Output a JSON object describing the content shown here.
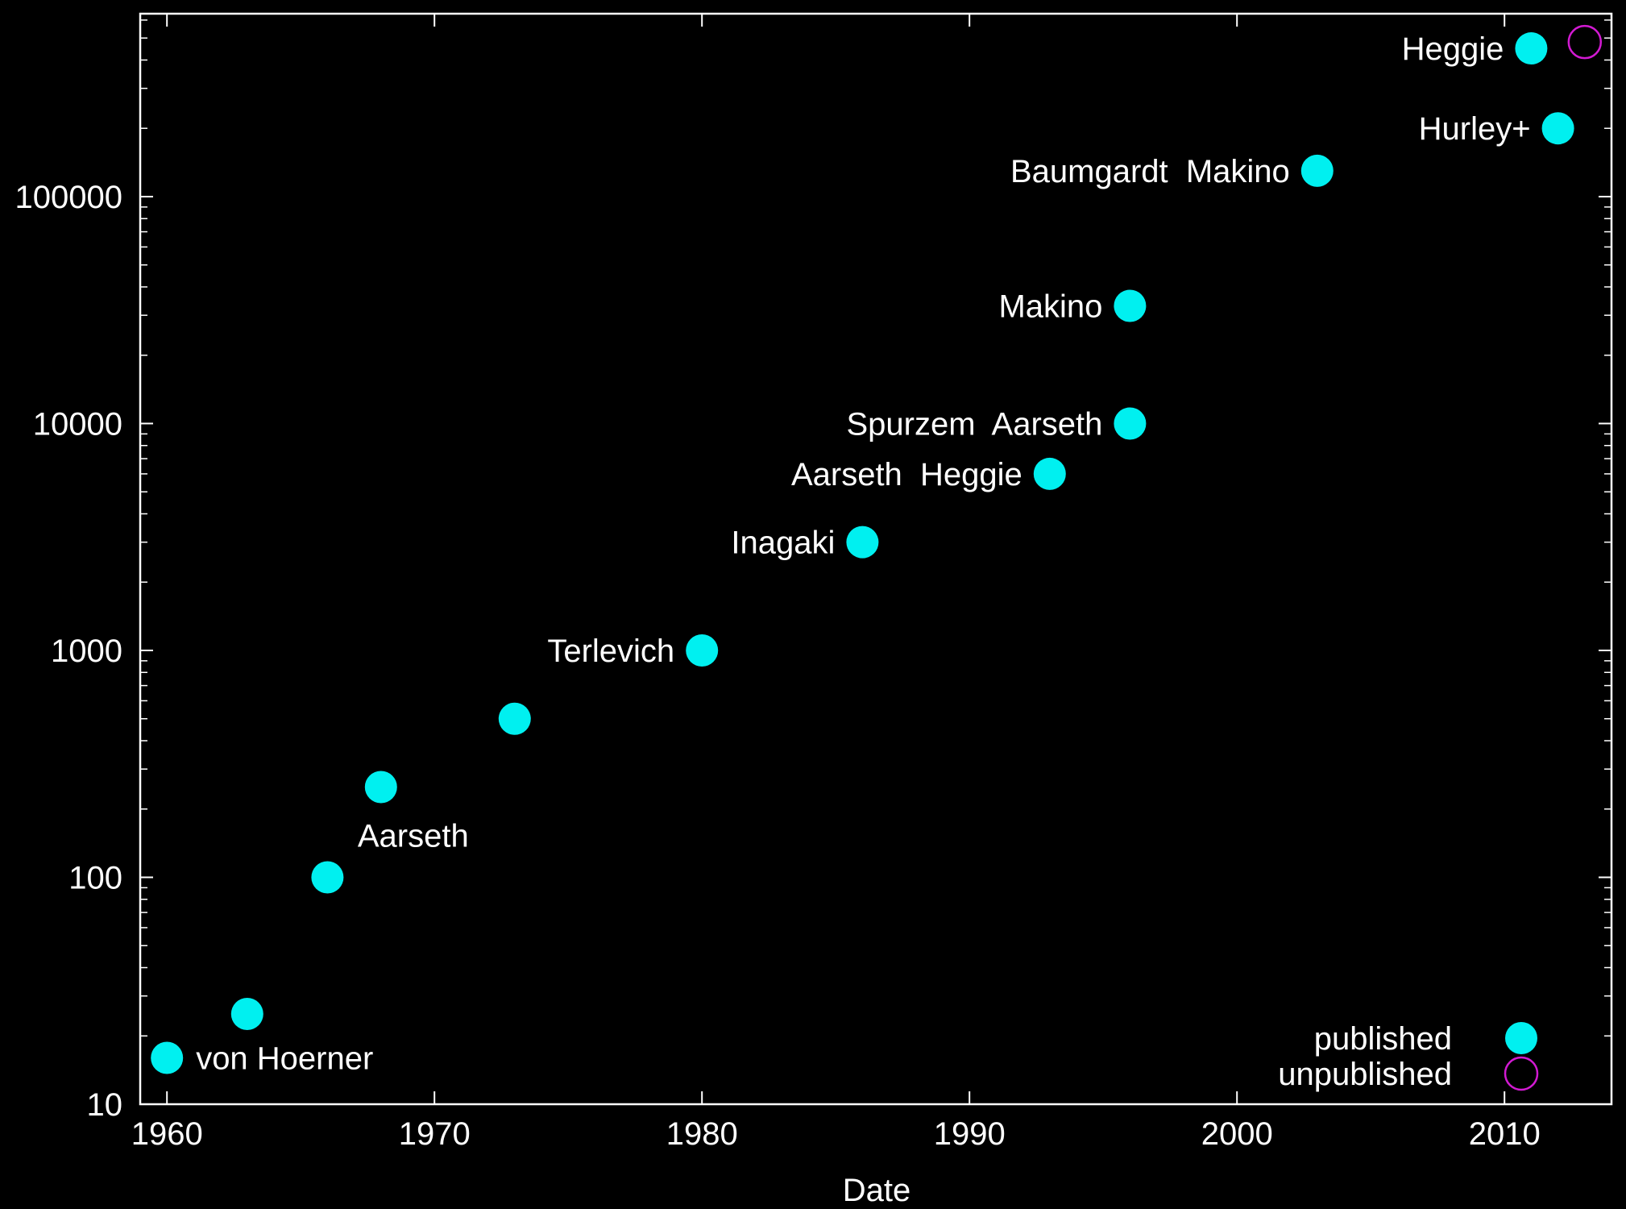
{
  "colors": {
    "background": "#000000",
    "axes": "#ffffff",
    "published": "#00f0f0",
    "unpublished": "#d21ad2"
  },
  "chart_data": {
    "type": "scatter",
    "title": "",
    "xlabel": "Date",
    "ylabel": "",
    "xlim": [
      1959,
      2014
    ],
    "ylim": [
      10,
      640000
    ],
    "yscale": "log",
    "grid": false,
    "legend_position": "bottom-right",
    "x_ticks": [
      1960,
      1970,
      1980,
      1990,
      2000,
      2010
    ],
    "y_ticks": [
      10,
      100,
      1000,
      10000,
      100000
    ],
    "x_tick_labels": [
      "1960",
      "1970",
      "1980",
      "1990",
      "2000",
      "2010"
    ],
    "y_tick_labels": [
      "10",
      "100",
      "1000",
      "10000",
      "100000"
    ],
    "series": [
      {
        "name": "published",
        "marker": "filled-circle",
        "color": "#00f0f0",
        "points": [
          {
            "x": 1960.0,
            "y": 16,
            "label": "von Hoerner",
            "label_side": "right"
          },
          {
            "x": 1963.0,
            "y": 25,
            "label": "",
            "label_side": "left"
          },
          {
            "x": 1966.0,
            "y": 100,
            "label": "",
            "label_side": "left"
          },
          {
            "x": 1968.0,
            "y": 250,
            "label": "Aarseth",
            "label_side": "below"
          },
          {
            "x": 1973.0,
            "y": 500,
            "label": "",
            "label_side": "left"
          },
          {
            "x": 1980.0,
            "y": 1000,
            "label": "Terlevich",
            "label_side": "left"
          },
          {
            "x": 1986.0,
            "y": 3000,
            "label": "Inagaki",
            "label_side": "left"
          },
          {
            "x": 1993.0,
            "y": 6000,
            "label": "Aarseth  Heggie",
            "label_side": "left"
          },
          {
            "x": 1996.0,
            "y": 10000,
            "label": "Spurzem  Aarseth",
            "label_side": "left"
          },
          {
            "x": 1996.0,
            "y": 33000,
            "label": "Makino",
            "label_side": "left"
          },
          {
            "x": 2003.0,
            "y": 130000,
            "label": "Baumgardt  Makino",
            "label_side": "left"
          },
          {
            "x": 2011.0,
            "y": 450000,
            "label": "Heggie",
            "label_side": "left"
          },
          {
            "x": 2012.0,
            "y": 200000,
            "label": "Hurley+",
            "label_side": "left"
          }
        ]
      },
      {
        "name": "unpublished",
        "marker": "open-circle",
        "color": "#d21ad2",
        "points": [
          {
            "x": 2013.0,
            "y": 480000,
            "label": "",
            "label_side": "left"
          }
        ]
      }
    ],
    "legend": [
      {
        "label": "published",
        "marker": "filled-circle",
        "color": "#00f0f0"
      },
      {
        "label": "unpublished",
        "marker": "open-circle",
        "color": "#d21ad2"
      }
    ]
  }
}
